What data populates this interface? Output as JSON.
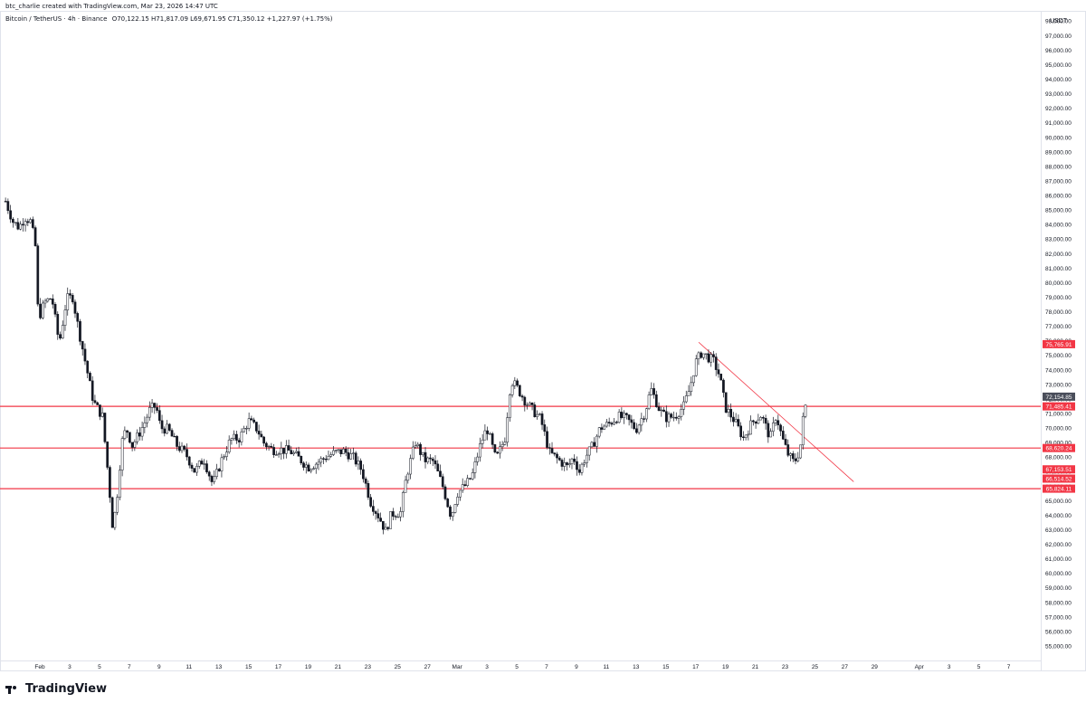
{
  "header": {
    "text": "btc_charlie created with TradingView.com, Mar 23, 2026 14:47 UTC",
    "symbol": "Bitcoin / TetherUS · 4h · Binance",
    "ohlc": "O70,122.15 H71,817.09 L69,671.95 C71,350.12 +1,227.97 (+1.75%)"
  },
  "footer": {
    "brand": "TradingView"
  },
  "chart_data": {
    "type": "candlestick",
    "symbol": "Bitcoin / TetherUS",
    "interval": "4h",
    "exchange": "Binance",
    "currency": "USDT",
    "ylim": [
      54500,
      98700
    ],
    "y_ticks": [
      55000,
      56000,
      57000,
      58000,
      59000,
      60000,
      61000,
      62000,
      63000,
      64000,
      65000,
      66000,
      67000,
      68000,
      69000,
      70000,
      71000,
      72000,
      73000,
      74000,
      75000,
      76000,
      77000,
      78000,
      79000,
      80000,
      81000,
      82000,
      83000,
      84000,
      85000,
      86000,
      87000,
      88000,
      89000,
      90000,
      91000,
      92000,
      93000,
      94000,
      95000,
      96000,
      97000,
      98000
    ],
    "x_ticks": [
      {
        "label": "Feb",
        "day": 0
      },
      {
        "label": "3",
        "day": 2
      },
      {
        "label": "5",
        "day": 4
      },
      {
        "label": "7",
        "day": 6
      },
      {
        "label": "9",
        "day": 8
      },
      {
        "label": "11",
        "day": 10
      },
      {
        "label": "13",
        "day": 12
      },
      {
        "label": "15",
        "day": 14
      },
      {
        "label": "17",
        "day": 16
      },
      {
        "label": "19",
        "day": 18
      },
      {
        "label": "21",
        "day": 20
      },
      {
        "label": "23",
        "day": 22
      },
      {
        "label": "25",
        "day": 24
      },
      {
        "label": "27",
        "day": 26
      },
      {
        "label": "Mar",
        "day": 28
      },
      {
        "label": "3",
        "day": 30
      },
      {
        "label": "5",
        "day": 32
      },
      {
        "label": "7",
        "day": 34
      },
      {
        "label": "9",
        "day": 36
      },
      {
        "label": "11",
        "day": 38
      },
      {
        "label": "13",
        "day": 40
      },
      {
        "label": "15",
        "day": 42
      },
      {
        "label": "17",
        "day": 44
      },
      {
        "label": "19",
        "day": 46
      },
      {
        "label": "21",
        "day": 48
      },
      {
        "label": "23",
        "day": 50
      },
      {
        "label": "25",
        "day": 52
      },
      {
        "label": "27",
        "day": 54
      },
      {
        "label": "29",
        "day": 56
      },
      {
        "label": "Apr",
        "day": 59
      },
      {
        "label": "3",
        "day": 61
      },
      {
        "label": "5",
        "day": 63
      },
      {
        "label": "7",
        "day": 65
      }
    ],
    "candle_anchors": [
      [
        -2.3,
        85600
      ],
      [
        -1.8,
        84200
      ],
      [
        -1.4,
        83800
      ],
      [
        -1.0,
        84500
      ],
      [
        -0.6,
        84200
      ],
      [
        -0.3,
        82500
      ],
      [
        -0.1,
        77500
      ],
      [
        0.3,
        78600
      ],
      [
        0.8,
        79000
      ],
      [
        1.3,
        75800
      ],
      [
        1.8,
        78900
      ],
      [
        2.2,
        79000
      ],
      [
        2.6,
        76800
      ],
      [
        3.2,
        73800
      ],
      [
        3.6,
        71800
      ],
      [
        4.2,
        70800
      ],
      [
        4.6,
        66600
      ],
      [
        4.9,
        63000
      ],
      [
        5.2,
        65500
      ],
      [
        5.5,
        69000
      ],
      [
        5.8,
        70000
      ],
      [
        6.2,
        68800
      ],
      [
        6.6,
        69500
      ],
      [
        7.0,
        70300
      ],
      [
        7.4,
        71300
      ],
      [
        7.8,
        71500
      ],
      [
        8.1,
        70000
      ],
      [
        8.6,
        69900
      ],
      [
        9.2,
        68800
      ],
      [
        9.8,
        68200
      ],
      [
        10.4,
        67000
      ],
      [
        11.0,
        67900
      ],
      [
        11.6,
        66100
      ],
      [
        12.2,
        67800
      ],
      [
        12.8,
        69200
      ],
      [
        13.4,
        69300
      ],
      [
        14.0,
        70500
      ],
      [
        14.6,
        69900
      ],
      [
        15.0,
        69000
      ],
      [
        15.6,
        68500
      ],
      [
        16.2,
        68500
      ],
      [
        16.8,
        68400
      ],
      [
        17.4,
        67900
      ],
      [
        18.0,
        67300
      ],
      [
        18.6,
        67600
      ],
      [
        19.2,
        68000
      ],
      [
        19.8,
        68300
      ],
      [
        20.4,
        68400
      ],
      [
        21.0,
        68000
      ],
      [
        21.6,
        67100
      ],
      [
        22.2,
        64900
      ],
      [
        22.8,
        63800
      ],
      [
        23.2,
        62900
      ],
      [
        23.6,
        64100
      ],
      [
        24.2,
        64200
      ],
      [
        24.6,
        66700
      ],
      [
        25.2,
        69000
      ],
      [
        25.8,
        67800
      ],
      [
        26.4,
        67700
      ],
      [
        27.0,
        66100
      ],
      [
        27.6,
        63900
      ],
      [
        28.0,
        65500
      ],
      [
        28.6,
        66100
      ],
      [
        29.0,
        66700
      ],
      [
        29.6,
        69000
      ],
      [
        30.0,
        70000
      ],
      [
        30.6,
        67800
      ],
      [
        31.2,
        69300
      ],
      [
        31.6,
        73300
      ],
      [
        32.0,
        72800
      ],
      [
        32.6,
        71800
      ],
      [
        33.0,
        71300
      ],
      [
        33.6,
        70600
      ],
      [
        34.2,
        68300
      ],
      [
        34.8,
        67800
      ],
      [
        35.4,
        67300
      ],
      [
        35.8,
        68000
      ],
      [
        36.2,
        67000
      ],
      [
        36.6,
        68000
      ],
      [
        37.0,
        68600
      ],
      [
        37.6,
        70000
      ],
      [
        38.2,
        70300
      ],
      [
        38.8,
        70800
      ],
      [
        39.4,
        70600
      ],
      [
        40.0,
        69900
      ],
      [
        40.6,
        71100
      ],
      [
        41.0,
        72700
      ],
      [
        41.6,
        71200
      ],
      [
        42.0,
        70700
      ],
      [
        42.6,
        70800
      ],
      [
        43.2,
        71500
      ],
      [
        43.6,
        72700
      ],
      [
        44.0,
        74500
      ],
      [
        44.4,
        75200
      ],
      [
        44.8,
        74900
      ],
      [
        45.2,
        74600
      ],
      [
        45.6,
        73600
      ],
      [
        46.0,
        71400
      ],
      [
        46.6,
        70500
      ],
      [
        47.2,
        69300
      ],
      [
        47.8,
        70400
      ],
      [
        48.4,
        70900
      ],
      [
        49.0,
        69300
      ],
      [
        49.4,
        70900
      ],
      [
        49.8,
        69300
      ],
      [
        50.2,
        68200
      ],
      [
        50.6,
        67600
      ],
      [
        51.0,
        68500
      ],
      [
        51.3,
        71600
      ],
      [
        51.5,
        71350
      ]
    ],
    "trendline": {
      "start": [
        44.2,
        75900
      ],
      "end": [
        54.6,
        66300
      ]
    },
    "horizontal_levels": [
      71485.41,
      68620.24,
      65824.11
    ],
    "price_labels": [
      {
        "text": "75,765.91",
        "value": 75765.91,
        "color": "#f23645"
      },
      {
        "text": "72,154.85",
        "value": 72154.85,
        "color": "#4a4e5b"
      },
      {
        "text": "71,485.41",
        "value": 71485.41,
        "color": "#f23645"
      },
      {
        "text": "68,620.24",
        "value": 68620.24,
        "color": "#f23645"
      },
      {
        "text": "67,153.51",
        "value": 67153.51,
        "color": "#f23645"
      },
      {
        "text": "66,514.52",
        "value": 66514.52,
        "color": "#f23645"
      },
      {
        "text": "65,824.11",
        "value": 65824.11,
        "color": "#f23645"
      }
    ],
    "colors": {
      "line": "#f23645",
      "trend": "#f23645",
      "up": "#ffffff",
      "down": "#131722",
      "axis_text": "#131722"
    },
    "grid": false
  }
}
